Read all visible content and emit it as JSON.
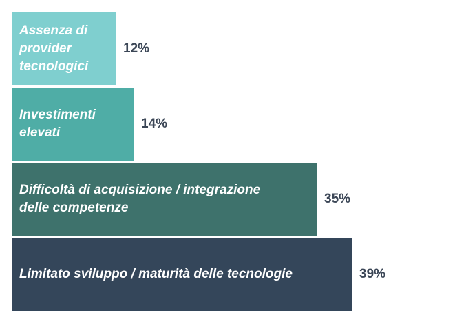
{
  "chart_data": {
    "type": "bar",
    "orientation": "horizontal",
    "categories": [
      "Assenza di\nprovider\ntecnologici",
      "Investimenti\nelevati",
      "Difficoltà di acquisizione / integrazione\ndelle competenze",
      "Limitato sviluppo / maturità delle tecnologie"
    ],
    "values": [
      12,
      14,
      35,
      39
    ],
    "value_labels": [
      "12%",
      "14%",
      "35%",
      "39%"
    ],
    "colors": [
      "#7fcfcf",
      "#4fada6",
      "#3e726c",
      "#34465a"
    ],
    "title": "",
    "xlabel": "",
    "ylabel": "",
    "grid": false,
    "legend": "none"
  }
}
